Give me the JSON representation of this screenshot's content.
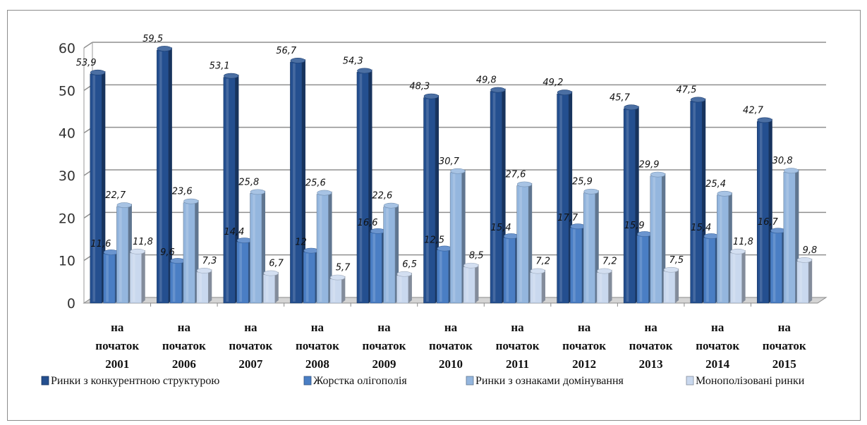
{
  "chart_data": {
    "type": "bar",
    "categories": [
      [
        "на",
        "початок",
        "2001"
      ],
      [
        "на",
        "початок",
        "2006"
      ],
      [
        "на",
        "початок",
        "2007"
      ],
      [
        "на",
        "початок",
        "2008"
      ],
      [
        "на",
        "початок",
        "2009"
      ],
      [
        "на",
        "початок",
        "2010"
      ],
      [
        "на",
        "початок",
        "2011"
      ],
      [
        "на",
        "початок",
        "2012"
      ],
      [
        "на",
        "початок",
        "2013"
      ],
      [
        "на",
        "початок",
        "2014"
      ],
      [
        "на",
        "початок",
        "2015"
      ]
    ],
    "series": [
      {
        "name": "Ринки з конкурентною структурою",
        "color": "#244f8f",
        "values": [
          53.9,
          59.5,
          53.1,
          56.7,
          54.3,
          48.3,
          49.8,
          49.2,
          45.7,
          47.5,
          42.7
        ],
        "labels": [
          "53,9",
          "59,5",
          "53,1",
          "56,7",
          "54,3",
          "48,3",
          "49,8",
          "49,2",
          "45,7",
          "47,5",
          "42,7"
        ]
      },
      {
        "name": "Жорстка олігополія",
        "color": "#4a7ec4",
        "values": [
          11.6,
          9.6,
          14.4,
          12,
          16.6,
          12.5,
          15.4,
          17.7,
          15.9,
          15.4,
          16.7
        ],
        "labels": [
          "11,6",
          "9,6",
          "14,4",
          "12",
          "16,6",
          "12,5",
          "15,4",
          "17,7",
          "15,9",
          "15,4",
          "16,7"
        ]
      },
      {
        "name": "Ринки з ознаками домінування",
        "color": "#94b6de",
        "values": [
          22.7,
          23.6,
          25.8,
          25.6,
          22.6,
          30.7,
          27.6,
          25.9,
          29.9,
          25.4,
          30.8
        ],
        "labels": [
          "22,7",
          "23,6",
          "25,8",
          "25,6",
          "22,6",
          "30,7",
          "27,6",
          "25,9",
          "29,9",
          "25,4",
          "30,8"
        ]
      },
      {
        "name": "Монополізовані ринки",
        "color": "#c9d8ee",
        "values": [
          11.8,
          7.3,
          6.7,
          5.7,
          6.5,
          8.5,
          7.2,
          7.2,
          7.5,
          11.8,
          9.8
        ],
        "labels": [
          "11,8",
          "7,3",
          "6,7",
          "5,7",
          "6,5",
          "8,5",
          "7,2",
          "7,2",
          "7,5",
          "11,8",
          "9,8"
        ]
      }
    ],
    "y_ticks": [
      "0",
      "10",
      "20",
      "30",
      "40",
      "50",
      "60"
    ],
    "ylim": [
      0,
      60
    ],
    "grid": true,
    "legend_position": "bottom",
    "title": "",
    "xlabel": "",
    "ylabel": ""
  }
}
